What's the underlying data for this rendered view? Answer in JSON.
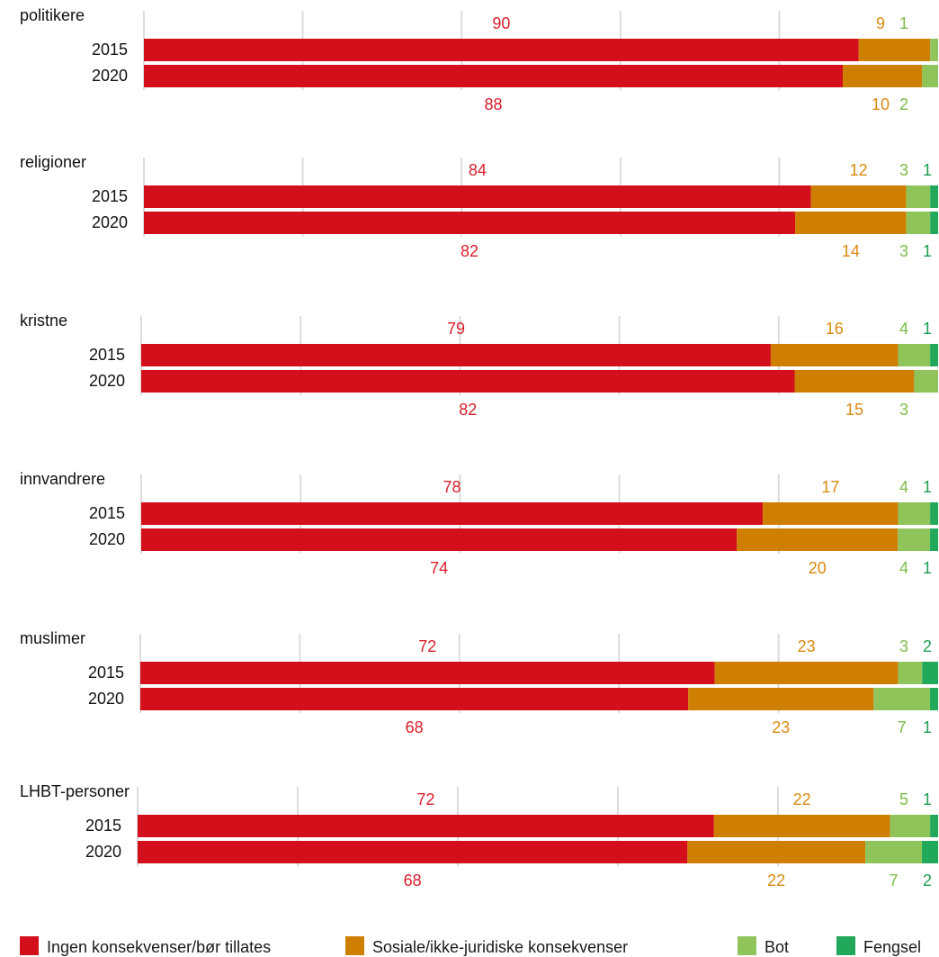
{
  "chart_data": {
    "type": "bar",
    "orientation": "horizontal",
    "stacked": true,
    "grid": true,
    "legend_position": "bottom",
    "groups": [
      {
        "label": "politikere",
        "years": [
          "2015",
          "2020"
        ],
        "values": {
          "2015": [
            90,
            9,
            1,
            0
          ],
          "2020": [
            88,
            10,
            2,
            0
          ]
        },
        "labels": {
          "2015": [
            "90",
            "9",
            "1",
            ""
          ],
          "2020": [
            "88",
            "10",
            "2",
            ""
          ]
        }
      },
      {
        "label": "religioner",
        "years": [
          "2015",
          "2020"
        ],
        "values": {
          "2015": [
            84,
            12,
            3,
            1
          ],
          "2020": [
            82,
            14,
            3,
            1
          ]
        },
        "labels": {
          "2015": [
            "84",
            "12",
            "3",
            "1"
          ],
          "2020": [
            "82",
            "14",
            "3",
            "1"
          ]
        }
      },
      {
        "label": "kristne",
        "years": [
          "2015",
          "2020"
        ],
        "values": {
          "2015": [
            79,
            16,
            4,
            1
          ],
          "2020": [
            82,
            15,
            3,
            0
          ]
        },
        "labels": {
          "2015": [
            "79",
            "16",
            "4",
            "1"
          ],
          "2020": [
            "82",
            "15",
            "3",
            ""
          ]
        }
      },
      {
        "label": "innvandrere",
        "years": [
          "2015",
          "2020"
        ],
        "values": {
          "2015": [
            78,
            17,
            4,
            1
          ],
          "2020": [
            74,
            20,
            4,
            1
          ]
        },
        "labels": {
          "2015": [
            "78",
            "17",
            "4",
            "1"
          ],
          "2020": [
            "74",
            "20",
            "4",
            "1"
          ]
        }
      },
      {
        "label": "muslimer",
        "years": [
          "2015",
          "2020"
        ],
        "values": {
          "2015": [
            72,
            23,
            3,
            2
          ],
          "2020": [
            68,
            23,
            7,
            1
          ]
        },
        "labels": {
          "2015": [
            "72",
            "23",
            "3",
            "2"
          ],
          "2020": [
            "68",
            "23",
            "7",
            "1"
          ]
        }
      },
      {
        "label": "LHBT-personer",
        "years": [
          "2015",
          "2020"
        ],
        "values": {
          "2015": [
            72,
            22,
            5,
            1
          ],
          "2020": [
            68,
            22,
            7,
            2
          ]
        },
        "labels": {
          "2015": [
            "72",
            "22",
            "5",
            "1"
          ],
          "2020": [
            "68",
            "22",
            "7",
            "2"
          ]
        }
      }
    ],
    "series": [
      {
        "name": "Ingen konsekvenser/bør tillates",
        "color": "#d20f1a",
        "label_color": "#d91e2a"
      },
      {
        "name": "Sosiale/ikke-juridiske konsekvenser",
        "color": "#cf7f00",
        "label_color": "#d98a10"
      },
      {
        "name": "Bot",
        "color": "#8fc45a",
        "label_color": "#7cbc46"
      },
      {
        "name": "Fengsel",
        "color": "#22a85a",
        "label_color": "#1d9c50"
      }
    ],
    "xlim": [
      0,
      100
    ]
  }
}
